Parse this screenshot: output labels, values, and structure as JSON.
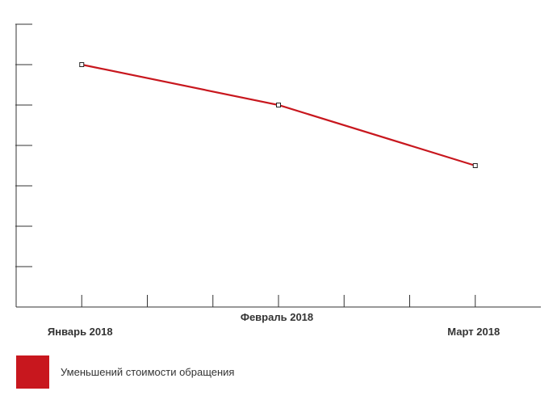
{
  "chart_data": {
    "type": "line",
    "categories": [
      "Январь 2018",
      "Февраль 2018",
      "Март 2018"
    ],
    "series": [
      {
        "name": "Уменьшений стоимости обращения",
        "values": [
          6,
          5,
          3.5
        ],
        "color": "#c8171e"
      }
    ],
    "ylim": [
      0,
      7
    ],
    "y_ticks": [
      0,
      1,
      2,
      3,
      4,
      5,
      6,
      7
    ],
    "ytick_labels_shown": false,
    "grid": false,
    "legend_position": "bottom-left",
    "title": "",
    "xlabel": "",
    "ylabel": ""
  }
}
